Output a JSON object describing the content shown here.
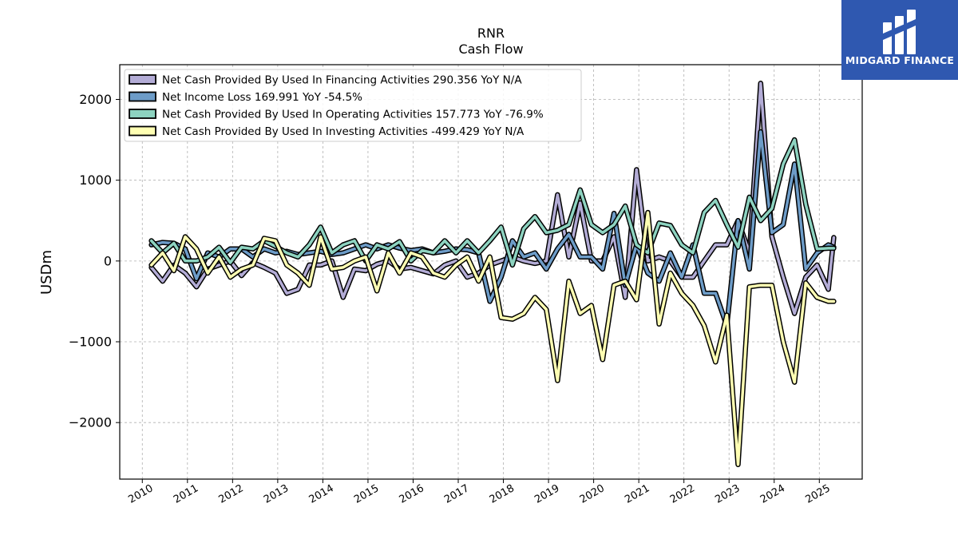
{
  "brand": {
    "name": "MIDGARD FINANCE",
    "bg_color": "#2f58b0"
  },
  "chart_data": {
    "type": "line",
    "title": "RNR",
    "subtitle": "Cash Flow",
    "ylabel": "USDm",
    "xlabel": "",
    "ylim": [
      -2700,
      2430
    ],
    "xlim": [
      2009.5,
      2025.95
    ],
    "yticks": [
      -2000,
      -1000,
      0,
      1000,
      2000
    ],
    "ytick_labels": [
      "−2000",
      "−1000",
      "0",
      "1000",
      "2000"
    ],
    "xticks": [
      2010,
      2011,
      2012,
      2013,
      2014,
      2015,
      2016,
      2017,
      2018,
      2019,
      2020,
      2021,
      2022,
      2023,
      2024,
      2025
    ],
    "xtick_labels": [
      "2010",
      "2011",
      "2012",
      "2013",
      "2014",
      "2015",
      "2016",
      "2017",
      "2018",
      "2019",
      "2020",
      "2021",
      "2022",
      "2023",
      "2024",
      "2025"
    ],
    "grid": true,
    "legend_position": "top-left",
    "series": [
      {
        "name": "Net Cash Provided By Used In Financing Activities",
        "legend_label": "Net Cash Provided By Used In Financing Activities  290.356 YoY N/A",
        "color": "#b3acd6",
        "x": [
          2010.2,
          2010.45,
          2010.7,
          2010.95,
          2011.2,
          2011.45,
          2011.7,
          2011.95,
          2012.2,
          2012.45,
          2012.7,
          2012.95,
          2013.2,
          2013.45,
          2013.7,
          2013.95,
          2014.2,
          2014.45,
          2014.7,
          2014.95,
          2015.2,
          2015.45,
          2015.7,
          2015.95,
          2016.2,
          2016.45,
          2016.7,
          2016.95,
          2017.2,
          2017.45,
          2017.7,
          2017.95,
          2018.2,
          2018.45,
          2018.7,
          2018.95,
          2019.2,
          2019.45,
          2019.7,
          2019.95,
          2020.2,
          2020.45,
          2020.7,
          2020.95,
          2021.2,
          2021.45,
          2021.7,
          2021.95,
          2022.2,
          2022.45,
          2022.7,
          2022.95,
          2023.2,
          2023.45,
          2023.7,
          2023.95,
          2024.2,
          2024.45,
          2024.7,
          2024.95,
          2025.2,
          2025.32
        ],
        "values": [
          -80,
          -250,
          -50,
          -150,
          -320,
          -100,
          -50,
          0,
          -180,
          -20,
          -80,
          -150,
          -400,
          -350,
          -50,
          -50,
          0,
          -450,
          -100,
          -120,
          -40,
          0,
          -100,
          -80,
          -120,
          -160,
          -50,
          0,
          -200,
          -150,
          -50,
          0,
          50,
          0,
          -30,
          0,
          820,
          50,
          720,
          0,
          0,
          300,
          -450,
          1130,
          0,
          50,
          0,
          -200,
          -200,
          0,
          200,
          200,
          500,
          100,
          2200,
          300,
          -200,
          -650,
          -200,
          -50,
          -350,
          290
        ]
      },
      {
        "name": "Net Income Loss",
        "legend_label": "Net Income Loss  169.991 YoY -54.5%",
        "color": "#6d9cc8",
        "x": [
          2010.2,
          2010.45,
          2010.7,
          2010.95,
          2011.2,
          2011.45,
          2011.7,
          2011.95,
          2012.2,
          2012.45,
          2012.7,
          2012.95,
          2013.2,
          2013.45,
          2013.7,
          2013.95,
          2014.2,
          2014.45,
          2014.7,
          2014.95,
          2015.2,
          2015.45,
          2015.7,
          2015.95,
          2016.2,
          2016.45,
          2016.7,
          2016.95,
          2017.2,
          2017.45,
          2017.7,
          2017.95,
          2018.2,
          2018.45,
          2018.7,
          2018.95,
          2019.2,
          2019.45,
          2019.7,
          2019.95,
          2020.2,
          2020.45,
          2020.7,
          2020.95,
          2021.2,
          2021.45,
          2021.7,
          2021.95,
          2022.2,
          2022.45,
          2022.7,
          2022.95,
          2023.2,
          2023.45,
          2023.7,
          2023.95,
          2024.2,
          2024.45,
          2024.7,
          2024.95,
          2025.2,
          2025.32
        ],
        "values": [
          200,
          230,
          220,
          150,
          -220,
          100,
          50,
          150,
          150,
          50,
          150,
          100,
          120,
          80,
          100,
          120,
          80,
          100,
          150,
          200,
          150,
          200,
          160,
          130,
          150,
          100,
          120,
          150,
          140,
          100,
          -500,
          -200,
          250,
          50,
          100,
          -100,
          150,
          330,
          50,
          50,
          -100,
          590,
          -300,
          200,
          -150,
          -250,
          100,
          -200,
          200,
          -400,
          -400,
          -800,
          500,
          -100,
          1600,
          350,
          450,
          1200,
          -100,
          100,
          200,
          170
        ]
      },
      {
        "name": "Net Cash Provided By Used In Operating Activities",
        "legend_label": "Net Cash Provided By Used In Operating Activities  157.773 YoY -76.9%",
        "color": "#8dd3c0",
        "x": [
          2010.2,
          2010.45,
          2010.7,
          2010.95,
          2011.2,
          2011.45,
          2011.7,
          2011.95,
          2012.2,
          2012.45,
          2012.7,
          2012.95,
          2013.2,
          2013.45,
          2013.7,
          2013.95,
          2014.2,
          2014.45,
          2014.7,
          2014.95,
          2015.2,
          2015.45,
          2015.7,
          2015.95,
          2016.2,
          2016.45,
          2016.7,
          2016.95,
          2017.2,
          2017.45,
          2017.7,
          2017.95,
          2018.2,
          2018.45,
          2018.7,
          2018.95,
          2019.2,
          2019.45,
          2019.7,
          2019.95,
          2020.2,
          2020.45,
          2020.7,
          2020.95,
          2021.2,
          2021.45,
          2021.7,
          2021.95,
          2022.2,
          2022.45,
          2022.7,
          2022.95,
          2023.2,
          2023.45,
          2023.7,
          2023.95,
          2024.2,
          2024.45,
          2024.7,
          2024.95,
          2025.2,
          2025.32
        ],
        "values": [
          250,
          100,
          220,
          0,
          0,
          50,
          170,
          -20,
          170,
          150,
          250,
          180,
          100,
          50,
          200,
          420,
          100,
          200,
          250,
          0,
          200,
          150,
          240,
          0,
          130,
          100,
          250,
          100,
          250,
          100,
          250,
          420,
          -50,
          400,
          550,
          350,
          380,
          450,
          880,
          450,
          350,
          450,
          680,
          200,
          100,
          470,
          440,
          200,
          100,
          600,
          750,
          450,
          170,
          790,
          500,
          650,
          1200,
          1500,
          700,
          150,
          157.773,
          157.773
        ]
      },
      {
        "name": "Net Cash Provided By Used In Investing Activities",
        "legend_label": "Net Cash Provided By Used In Investing Activities  -499.429 YoY N/A",
        "color": "#ffffb3",
        "x": [
          2010.2,
          2010.45,
          2010.7,
          2010.95,
          2011.2,
          2011.45,
          2011.7,
          2011.95,
          2012.2,
          2012.45,
          2012.7,
          2012.95,
          2013.2,
          2013.45,
          2013.7,
          2013.95,
          2014.2,
          2014.45,
          2014.7,
          2014.95,
          2015.2,
          2015.45,
          2015.7,
          2015.95,
          2016.2,
          2016.45,
          2016.7,
          2016.95,
          2017.2,
          2017.45,
          2017.7,
          2017.95,
          2018.2,
          2018.45,
          2018.7,
          2018.95,
          2019.2,
          2019.45,
          2019.7,
          2019.95,
          2020.2,
          2020.45,
          2020.7,
          2020.95,
          2021.2,
          2021.45,
          2021.7,
          2021.95,
          2022.2,
          2022.45,
          2022.7,
          2022.95,
          2023.2,
          2023.45,
          2023.7,
          2023.95,
          2024.2,
          2024.45,
          2024.7,
          2024.95,
          2025.2,
          2025.32
        ],
        "values": [
          -50,
          100,
          -120,
          300,
          150,
          -150,
          50,
          -200,
          -100,
          -50,
          280,
          250,
          -50,
          -150,
          -300,
          300,
          -100,
          -80,
          0,
          50,
          -370,
          100,
          -150,
          100,
          50,
          -150,
          -200,
          -50,
          50,
          -250,
          50,
          -700,
          -720,
          -650,
          -450,
          -600,
          -1480,
          -250,
          -650,
          -550,
          -1220,
          -300,
          -250,
          -480,
          600,
          -780,
          -150,
          -400,
          -550,
          -800,
          -1250,
          -670,
          -2520,
          -320,
          -300,
          -300,
          -1000,
          -1500,
          -270,
          -450,
          -499.429,
          -499.429
        ]
      }
    ]
  }
}
